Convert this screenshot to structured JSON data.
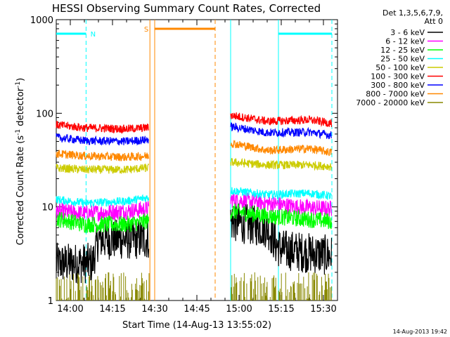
{
  "chart_data": {
    "type": "line",
    "title": "HESSI Observing Summary Count Rates, Corrected",
    "xlabel": "Start Time (14-Aug-13 13:55:02)",
    "ylabel_main": "Corrected Count Rate (s",
    "ylabel_sup1": "-1",
    "ylabel_mid": " detector",
    "ylabel_sup2": "-1",
    "ylabel_end": ")",
    "y_scale": "log",
    "ylim": [
      1,
      1000
    ],
    "xlim_minutes": [
      -5,
      95
    ],
    "x_ticks": [
      {
        "m": 0,
        "label": "14:00"
      },
      {
        "m": 15,
        "label": "14:15"
      },
      {
        "m": 30,
        "label": "14:30"
      },
      {
        "m": 45,
        "label": "14:45"
      },
      {
        "m": 60,
        "label": "15:00"
      },
      {
        "m": 75,
        "label": "15:15"
      },
      {
        "m": 90,
        "label": "15:30"
      }
    ],
    "y_ticks": [
      {
        "v": 1,
        "label": "1"
      },
      {
        "v": 10,
        "label": "10"
      },
      {
        "v": 100,
        "label": "100"
      },
      {
        "v": 1000,
        "label": "1000"
      }
    ],
    "legend_header": [
      "Det 1,3,5,6,7,9,",
      "Att 0"
    ],
    "legend_position": "right",
    "timestamp": "14-Aug-2013 19:42",
    "segments": [
      [
        -5,
        28
      ],
      [
        57,
        93
      ]
    ],
    "flags": [
      {
        "label": "N",
        "start": -5,
        "end": 5.6,
        "color": "#00ffff"
      },
      {
        "label": "S",
        "start": 30,
        "end": 51.5,
        "color": "#ff8800"
      }
    ],
    "vlines": [
      {
        "m": 5.6,
        "color": "#00ffff",
        "dash": true
      },
      {
        "m": 28.3,
        "color": "#ff8800",
        "dash": false
      },
      {
        "m": 30,
        "color": "#ff8800",
        "dash": false
      },
      {
        "m": 51.5,
        "color": "#ff8800",
        "dash": true
      },
      {
        "m": 57,
        "color": "#00ffff",
        "dash": false
      },
      {
        "m": 74,
        "color": "#00ffff",
        "dash": false
      },
      {
        "m": 93,
        "color": "#00ffff",
        "dash": true
      }
    ],
    "series": [
      {
        "name": "3 - 6 keV",
        "color": "#000000",
        "values": [
          [
            -5,
            2.5
          ],
          [
            0,
            2.5
          ],
          [
            8,
            2.5
          ],
          [
            10,
            4.5
          ],
          [
            27,
            4.5
          ],
          [
            57,
            7
          ],
          [
            70,
            6
          ],
          [
            73,
            4
          ],
          [
            75,
            3.5
          ],
          [
            93,
            3
          ]
        ]
      },
      {
        "name": "6 - 12 keV",
        "color": "#ff00ff",
        "values": [
          [
            -5,
            9
          ],
          [
            5,
            8.5
          ],
          [
            20,
            9
          ],
          [
            27,
            9.5
          ],
          [
            57,
            12
          ],
          [
            70,
            11
          ],
          [
            80,
            10
          ],
          [
            93,
            9.5
          ]
        ]
      },
      {
        "name": "12 - 25 keV",
        "color": "#00ff00",
        "values": [
          [
            -5,
            7.5
          ],
          [
            5,
            6.5
          ],
          [
            20,
            6.5
          ],
          [
            27,
            7
          ],
          [
            57,
            9
          ],
          [
            70,
            8
          ],
          [
            93,
            7
          ]
        ]
      },
      {
        "name": "25 - 50 keV",
        "color": "#00ffff",
        "values": [
          [
            -5,
            12
          ],
          [
            5,
            11
          ],
          [
            20,
            11.5
          ],
          [
            27,
            12.5
          ],
          [
            57,
            15
          ],
          [
            70,
            13.5
          ],
          [
            85,
            14
          ],
          [
            93,
            13
          ]
        ]
      },
      {
        "name": "50 - 100 keV",
        "color": "#cccc00",
        "values": [
          [
            -5,
            26
          ],
          [
            5,
            25
          ],
          [
            20,
            25
          ],
          [
            27,
            26
          ],
          [
            57,
            30
          ],
          [
            70,
            28
          ],
          [
            85,
            28
          ],
          [
            93,
            27
          ]
        ]
      },
      {
        "name": "100 - 300 keV",
        "color": "#ff0000",
        "values": [
          [
            -5,
            75
          ],
          [
            5,
            70
          ],
          [
            20,
            68
          ],
          [
            27,
            70
          ],
          [
            57,
            95
          ],
          [
            70,
            82
          ],
          [
            85,
            85
          ],
          [
            93,
            78
          ]
        ]
      },
      {
        "name": "300 - 800 keV",
        "color": "#0000ff",
        "values": [
          [
            -5,
            55
          ],
          [
            5,
            51
          ],
          [
            20,
            50
          ],
          [
            27,
            52
          ],
          [
            57,
            72
          ],
          [
            70,
            62
          ],
          [
            85,
            63
          ],
          [
            93,
            58
          ]
        ]
      },
      {
        "name": "800 - 7000 keV",
        "color": "#ff8800",
        "values": [
          [
            -5,
            37
          ],
          [
            5,
            35
          ],
          [
            20,
            34
          ],
          [
            27,
            35
          ],
          [
            57,
            48
          ],
          [
            70,
            40
          ],
          [
            85,
            42
          ],
          [
            93,
            38
          ]
        ]
      },
      {
        "name": "7000 - 20000 keV",
        "color": "#888800",
        "values": [
          [
            -5,
            1.4
          ],
          [
            27,
            1.4
          ],
          [
            57,
            1.4
          ],
          [
            93,
            1.4
          ]
        ]
      }
    ]
  }
}
